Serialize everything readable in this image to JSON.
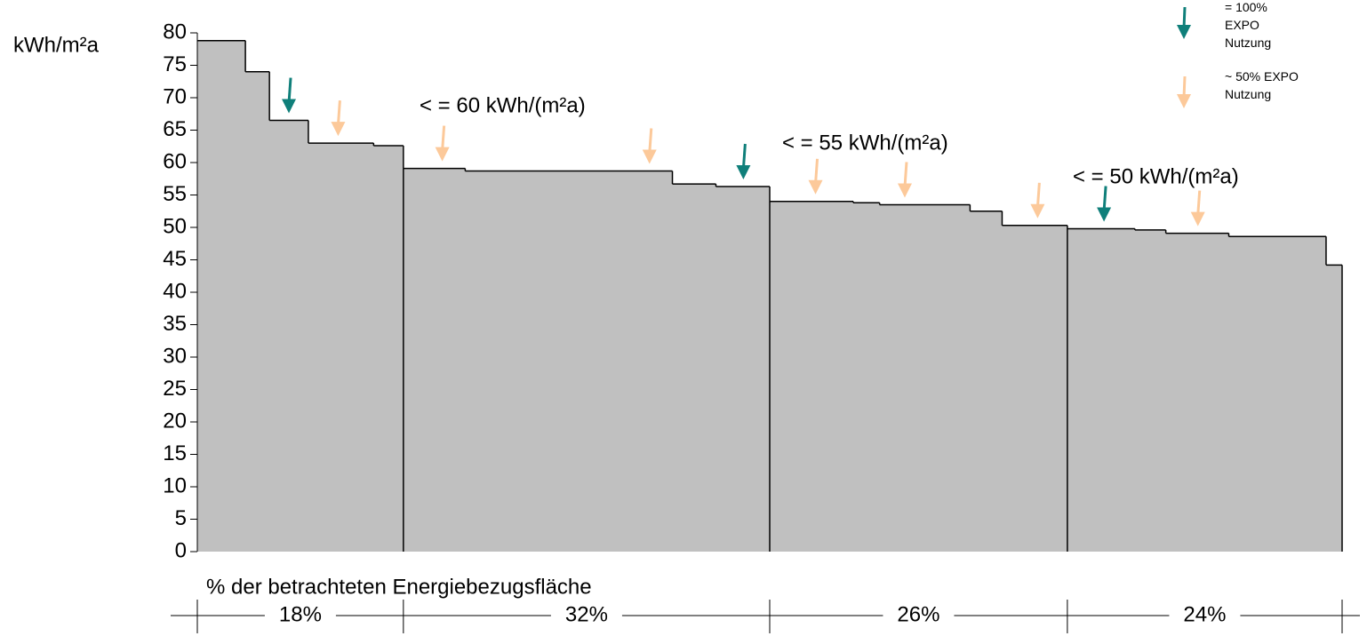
{
  "chart_data": {
    "type": "step-area",
    "y_label": "kWh/m²a",
    "x_label": "% der betrachteten Energiebezugsfläche",
    "ylim": [
      0,
      80
    ],
    "yticks": [
      0,
      5,
      10,
      15,
      20,
      25,
      30,
      35,
      40,
      45,
      50,
      55,
      60,
      65,
      70,
      75,
      80
    ],
    "xlim": [
      0,
      100
    ],
    "fill": "#c0c0c0",
    "steps": {
      "x": [
        0,
        4.2,
        6.3,
        9.7,
        15.4,
        18,
        23.4,
        41.5,
        45.3,
        50,
        57.3,
        59.6,
        67.5,
        70.3,
        76,
        81.9,
        84.6,
        90.1,
        98.6
      ],
      "values": [
        78.8,
        74,
        66.5,
        63,
        62.6,
        59.1,
        58.7,
        56.7,
        56.3,
        54,
        53.8,
        53.5,
        52.5,
        50.3,
        49.8,
        49.6,
        49.1,
        48.6,
        44.2
      ]
    },
    "annotations": [
      "< = 60 kWh/(m²a)",
      "< = 55 kWh/(m²a)",
      "< = 50 kWh/(m²a)"
    ],
    "segments": {
      "values": [
        18,
        32,
        26,
        24
      ],
      "value_labels": [
        "18%",
        "32%",
        "26%",
        "24%"
      ]
    },
    "series": [
      {
        "name": "= 100% EXPO Nutzung",
        "color": "#0f7f7a",
        "x": [
          8.0,
          47.7,
          79.2
        ]
      },
      {
        "name": "~ 50% EXPO Nutzung",
        "color": "#fcc99a",
        "x": [
          12.3,
          21.4,
          39.5,
          54.0,
          61.8,
          73.4,
          87.4
        ]
      }
    ]
  }
}
